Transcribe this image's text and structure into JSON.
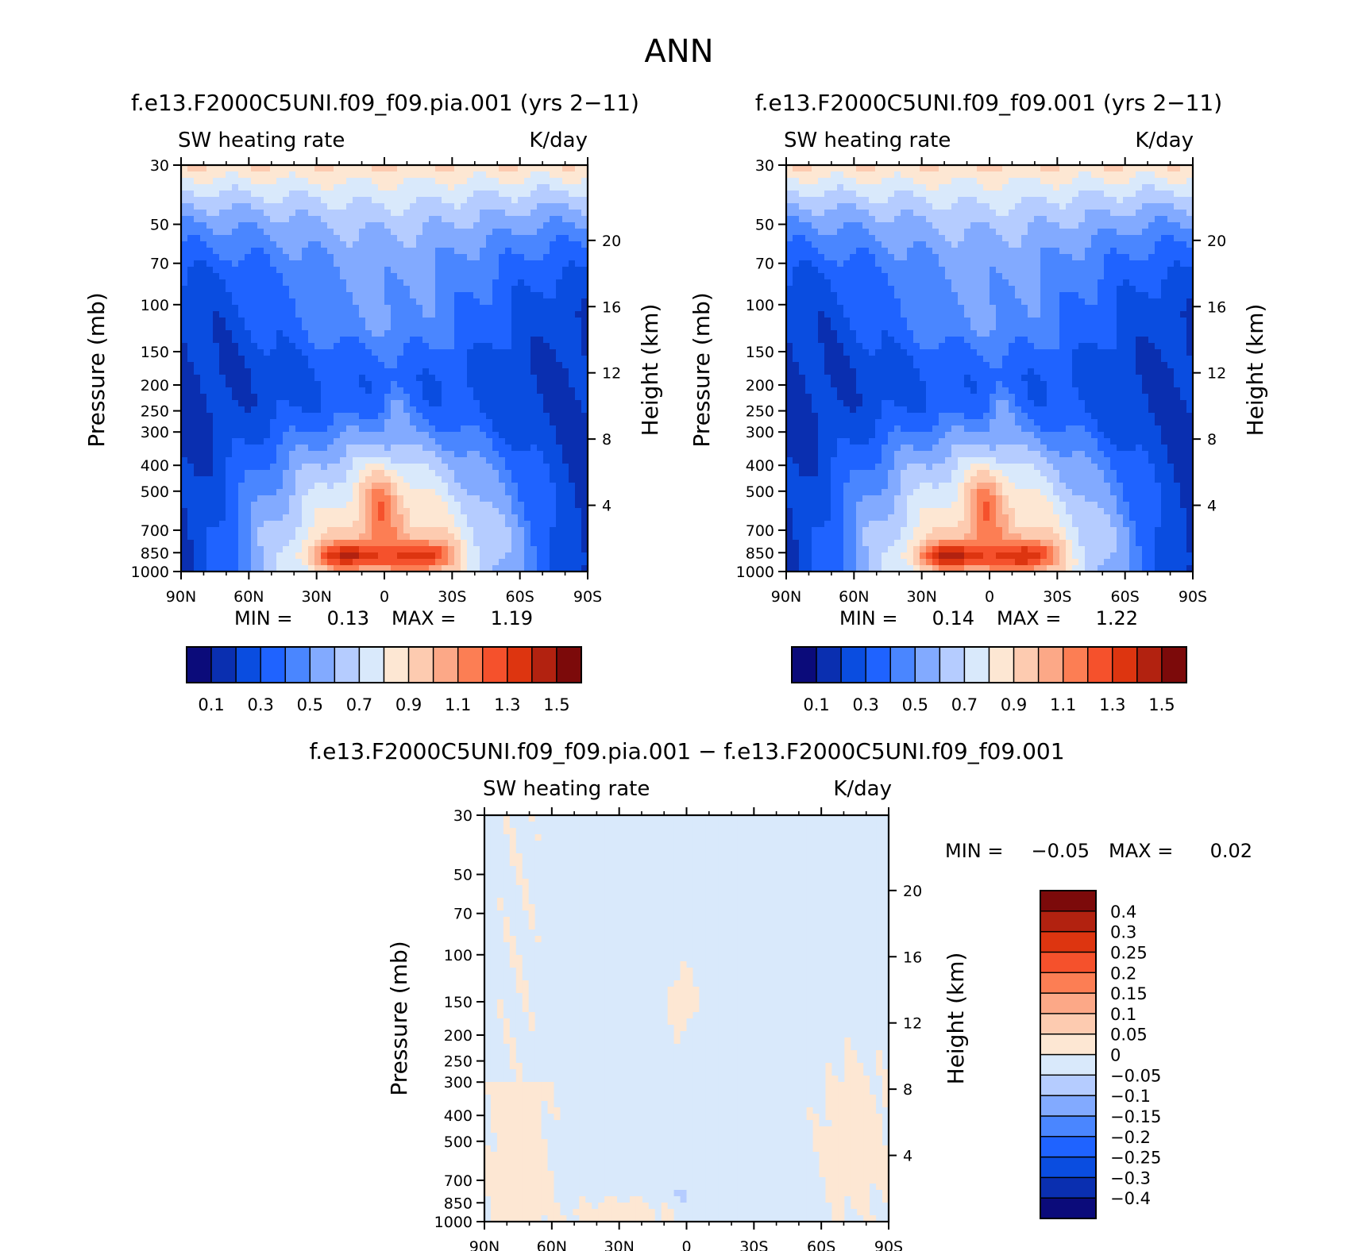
{
  "figure": {
    "title": "ANN"
  },
  "palettes": {
    "abs": [
      "#0b0b7a",
      "#0a2fb0",
      "#0a4de0",
      "#1f63ff",
      "#4a86ff",
      "#82aaff",
      "#b5ccff",
      "#d9e9fb",
      "#fde7d3",
      "#fdcbb0",
      "#fca887",
      "#fc7e54",
      "#f5512c",
      "#dd3510",
      "#b22210",
      "#7c0a0a"
    ],
    "diff": [
      "#0b0b7a",
      "#0a2fb0",
      "#0a4de0",
      "#1f63ff",
      "#4a86ff",
      "#82aaff",
      "#b5ccff",
      "#d9e9fb",
      "#fde7d3",
      "#fdcbb0",
      "#fca887",
      "#fc7e54",
      "#f5512c",
      "#dd3510",
      "#b22210",
      "#7c0a0a"
    ]
  },
  "chart_data": [
    {
      "type": "heatmap",
      "title": "f.e13.F2000C5UNI.f09_f09.pia.001 (yrs 2−11)",
      "left_label": "SW heating rate",
      "right_label": "K/day",
      "ylabel": "Pressure (mb)",
      "y2label": "Height (km)",
      "x_ticks": [
        "90N",
        "60N",
        "30N",
        "0",
        "30S",
        "60S",
        "90S"
      ],
      "y_ticks": [
        30,
        50,
        70,
        100,
        150,
        200,
        250,
        300,
        400,
        500,
        700,
        850,
        1000
      ],
      "y_tick_labels": [
        "30",
        "50",
        "70",
        "100",
        "150",
        "200",
        "250",
        "300",
        "400",
        "500",
        "700",
        "850",
        "1000"
      ],
      "y2_ticks": [
        4,
        8,
        12,
        16,
        20
      ],
      "y2_tick_labels": [
        "4",
        "8",
        "12",
        "16",
        "20"
      ],
      "stats": {
        "min_label": "MIN =",
        "min": "0.13",
        "max_label": "MAX =",
        "max": "1.19"
      },
      "colorbar": {
        "orientation": "horizontal",
        "levels": [
          0.1,
          0.2,
          0.3,
          0.4,
          0.5,
          0.6,
          0.7,
          0.8,
          0.9,
          1.0,
          1.1,
          1.2,
          1.3,
          1.4,
          1.5
        ],
        "labels": [
          "0.1",
          "0.3",
          "0.5",
          "0.7",
          "0.9",
          "1.1",
          "1.3",
          "1.5"
        ]
      },
      "field": {
        "tropo": [
          0.13,
          0.18,
          0.28,
          0.42,
          0.6,
          0.82,
          1.05,
          1.19
        ],
        "lobes": [
          {
            "lat": -18,
            "p": 870,
            "amp": 0.45
          },
          {
            "lat": 18,
            "p": 870,
            "amp": 0.48
          }
        ],
        "plume": {
          "lat": 2,
          "p": 560,
          "amp": 0.35
        }
      }
    },
    {
      "type": "heatmap",
      "title": "f.e13.F2000C5UNI.f09_f09.001 (yrs 2−11)",
      "left_label": "SW heating rate",
      "right_label": "K/day",
      "ylabel": "Pressure (mb)",
      "y2label": "Height (km)",
      "x_ticks": [
        "90N",
        "60N",
        "30N",
        "0",
        "30S",
        "60S",
        "90S"
      ],
      "y_ticks": [
        30,
        50,
        70,
        100,
        150,
        200,
        250,
        300,
        400,
        500,
        700,
        850,
        1000
      ],
      "y_tick_labels": [
        "30",
        "50",
        "70",
        "100",
        "150",
        "200",
        "250",
        "300",
        "400",
        "500",
        "700",
        "850",
        "1000"
      ],
      "y2_ticks": [
        4,
        8,
        12,
        16,
        20
      ],
      "y2_tick_labels": [
        "4",
        "8",
        "12",
        "16",
        "20"
      ],
      "stats": {
        "min_label": "MIN =",
        "min": "0.14",
        "max_label": "MAX =",
        "max": "1.22"
      },
      "colorbar": {
        "orientation": "horizontal",
        "levels": [
          0.1,
          0.2,
          0.3,
          0.4,
          0.5,
          0.6,
          0.7,
          0.8,
          0.9,
          1.0,
          1.1,
          1.2,
          1.3,
          1.4,
          1.5
        ],
        "labels": [
          "0.1",
          "0.3",
          "0.5",
          "0.7",
          "0.9",
          "1.1",
          "1.3",
          "1.5"
        ]
      }
    },
    {
      "type": "heatmap",
      "title": "f.e13.F2000C5UNI.f09_f09.pia.001 − f.e13.F2000C5UNI.f09_f09.001",
      "left_label": "SW heating rate",
      "right_label": "K/day",
      "ylabel": "Pressure (mb)",
      "y2label": "Height (km)",
      "x_ticks": [
        "90N",
        "60N",
        "30N",
        "0",
        "30S",
        "60S",
        "90S"
      ],
      "y_ticks": [
        30,
        50,
        70,
        100,
        150,
        200,
        250,
        300,
        400,
        500,
        700,
        850,
        1000
      ],
      "y_tick_labels": [
        "30",
        "50",
        "70",
        "100",
        "150",
        "200",
        "250",
        "300",
        "400",
        "500",
        "700",
        "850",
        "1000"
      ],
      "y2_ticks": [
        4,
        8,
        12,
        16,
        20
      ],
      "y2_tick_labels": [
        "4",
        "8",
        "12",
        "16",
        "20"
      ],
      "stats": {
        "min_label": "MIN =",
        "min": "−0.05",
        "max_label": "MAX =",
        "max": "0.02"
      },
      "colorbar": {
        "orientation": "vertical",
        "levels": [
          -0.4,
          -0.3,
          -0.25,
          -0.2,
          -0.15,
          -0.1,
          -0.05,
          0,
          0.05,
          0.1,
          0.15,
          0.2,
          0.25,
          0.3,
          0.4
        ],
        "labels": [
          "−0.4",
          "−0.3",
          "−0.25",
          "−0.2",
          "−0.15",
          "−0.1",
          "−0.05",
          "0",
          "0.05",
          "0.1",
          "0.15",
          "0.2",
          "0.25",
          "0.3",
          "0.4"
        ]
      }
    }
  ]
}
